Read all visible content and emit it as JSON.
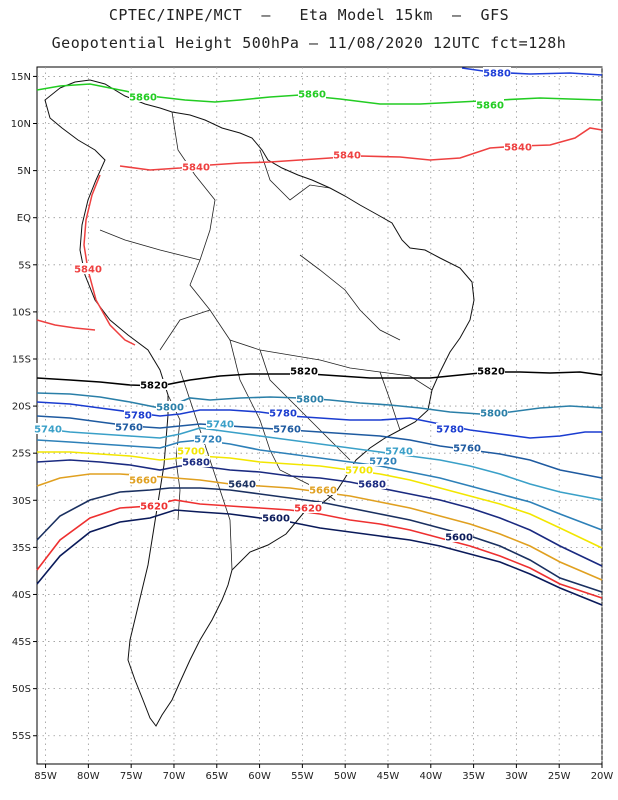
{
  "title_line1": "CPTEC/INPE/MCT  –   Eta Model 15km  –  GFS",
  "title_line2": "Geopotential Height 500hPa – 11/08/2020 12UTC fct=128h",
  "map": {
    "lon_range": [
      -86,
      -20
    ],
    "lat_range": [
      -58,
      16
    ],
    "lon_ticks": [
      "85W",
      "80W",
      "75W",
      "70W",
      "65W",
      "60W",
      "55W",
      "50W",
      "45W",
      "40W",
      "35W",
      "30W",
      "25W",
      "20W"
    ],
    "lat_ticks": [
      "15N",
      "10N",
      "5N",
      "EQ",
      "5S",
      "10S",
      "15S",
      "20S",
      "25S",
      "30S",
      "35S",
      "40S",
      "45S",
      "50S",
      "55S"
    ],
    "contours": [
      {
        "level": 5880,
        "label": "5880",
        "color": "#1f3fd8",
        "labels_text": [
          "5880",
          "5880"
        ]
      },
      {
        "level": 5860,
        "label": "5860",
        "color": "#22cc22",
        "labels_text": [
          "5860",
          "5860",
          "5860"
        ]
      },
      {
        "level": 5840,
        "label": "5840",
        "color": "#ee4040",
        "labels_text": [
          "5840",
          "5840",
          "5840",
          "5840"
        ]
      },
      {
        "level": 5820,
        "label": "5820",
        "color": "#000000",
        "labels_text": [
          "5820",
          "5820",
          "5820"
        ]
      },
      {
        "level": 5800,
        "label": "5800",
        "color": "#2a7fa8",
        "labels_text": [
          "5800",
          "5800",
          "5800"
        ]
      },
      {
        "level": 5780,
        "label": "5780",
        "color": "#1a3cd0",
        "labels_text": [
          "5780",
          "5780",
          "5780"
        ]
      },
      {
        "level": 5760,
        "label": "5760",
        "color": "#1e5aa0",
        "labels_text": [
          "5760",
          "5760",
          "5760"
        ]
      },
      {
        "level": 5740,
        "label": "5740",
        "color": "#3aa0c8",
        "labels_text": [
          "5740",
          "5740",
          "5740"
        ]
      },
      {
        "level": 5720,
        "label": "5720",
        "color": "#2d80b8",
        "labels_text": [
          "5720",
          "5720"
        ]
      },
      {
        "level": 5700,
        "label": "5700",
        "color": "#f2e600",
        "labels_text": [
          "5700",
          "5700"
        ]
      },
      {
        "level": 5680,
        "label": "5680",
        "color": "#1a2a80",
        "labels_text": [
          "5680",
          "5680"
        ]
      },
      {
        "level": 5660,
        "label": "5660",
        "color": "#e0a020",
        "labels_text": [
          "5660",
          "5660"
        ]
      },
      {
        "level": 5640,
        "label": "5640",
        "color": "#1a3060",
        "labels_text": [
          "5640"
        ]
      },
      {
        "level": 5620,
        "label": "5620",
        "color": "#ee3030",
        "labels_text": [
          "5620",
          "5620"
        ]
      },
      {
        "level": 5600,
        "label": "5600",
        "color": "#0a1a5a",
        "labels_text": [
          "5600",
          "5600"
        ]
      }
    ]
  }
}
